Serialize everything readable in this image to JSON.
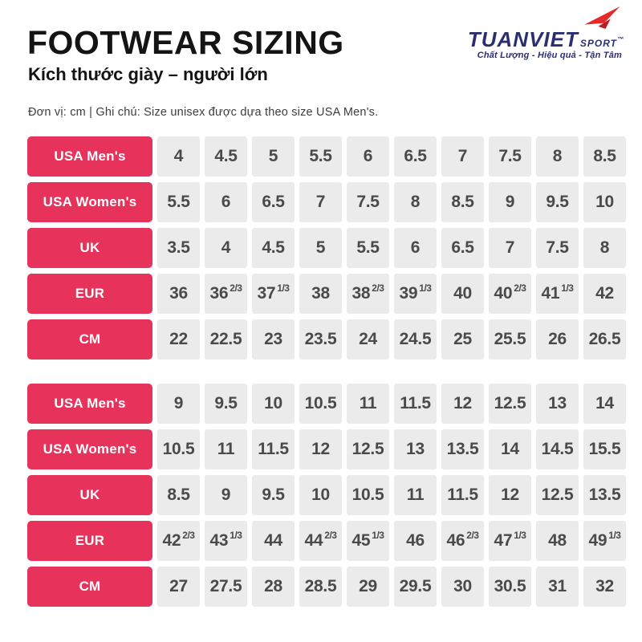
{
  "page": {
    "title": "FOOTWEAR SIZING",
    "subtitle": "Kích thước giày – người lớn",
    "note": "Đơn vị: cm | Ghi chú: Size unisex được dựa theo size USA Men's."
  },
  "logo": {
    "brand": "TUANVIET",
    "brand_suffix": "SPORT",
    "trademark": "™",
    "tagline": "Chất Lượng - Hiệu quả - Tận Tâm",
    "icon": "paper-plane-icon"
  },
  "colors": {
    "accent_red": "#e7335b",
    "brand_navy": "#2b2f72",
    "plane_red": "#e42a2a",
    "plane_dark_red": "#b71f24",
    "cell_bg": "#ebebeb",
    "cell_text": "#4a4a4a"
  },
  "tables": [
    {
      "name": "adult-sizes-small",
      "rows": [
        {
          "label": "USA Men's",
          "values": [
            "4",
            "4.5",
            "5",
            "5.5",
            "6",
            "6.5",
            "7",
            "7.5",
            "8",
            "8.5"
          ]
        },
        {
          "label": "USA Women's",
          "values": [
            "5.5",
            "6",
            "6.5",
            "7",
            "7.5",
            "8",
            "8.5",
            "9",
            "9.5",
            "10"
          ]
        },
        {
          "label": "UK",
          "values": [
            "3.5",
            "4",
            "4.5",
            "5",
            "5.5",
            "6",
            "6.5",
            "7",
            "7.5",
            "8"
          ]
        },
        {
          "label": "EUR",
          "values": [
            "36",
            "36 2/3",
            "37 1/3",
            "38",
            "38 2/3",
            "39 1/3",
            "40",
            "40 2/3",
            "41 1/3",
            "42"
          ]
        },
        {
          "label": "CM",
          "values": [
            "22",
            "22.5",
            "23",
            "23.5",
            "24",
            "24.5",
            "25",
            "25.5",
            "26",
            "26.5"
          ]
        }
      ]
    },
    {
      "name": "adult-sizes-large",
      "rows": [
        {
          "label": "USA Men's",
          "values": [
            "9",
            "9.5",
            "10",
            "10.5",
            "11",
            "11.5",
            "12",
            "12.5",
            "13",
            "14"
          ]
        },
        {
          "label": "USA Women's",
          "values": [
            "10.5",
            "11",
            "11.5",
            "12",
            "12.5",
            "13",
            "13.5",
            "14",
            "14.5",
            "15.5"
          ]
        },
        {
          "label": "UK",
          "values": [
            "8.5",
            "9",
            "9.5",
            "10",
            "10.5",
            "11",
            "11.5",
            "12",
            "12.5",
            "13.5"
          ]
        },
        {
          "label": "EUR",
          "values": [
            "42 2/3",
            "43 1/3",
            "44",
            "44 2/3",
            "45 1/3",
            "46",
            "46 2/3",
            "47 1/3",
            "48",
            "49 1/3"
          ]
        },
        {
          "label": "CM",
          "values": [
            "27",
            "27.5",
            "28",
            "28.5",
            "29",
            "29.5",
            "30",
            "30.5",
            "31",
            "32"
          ]
        }
      ]
    }
  ]
}
